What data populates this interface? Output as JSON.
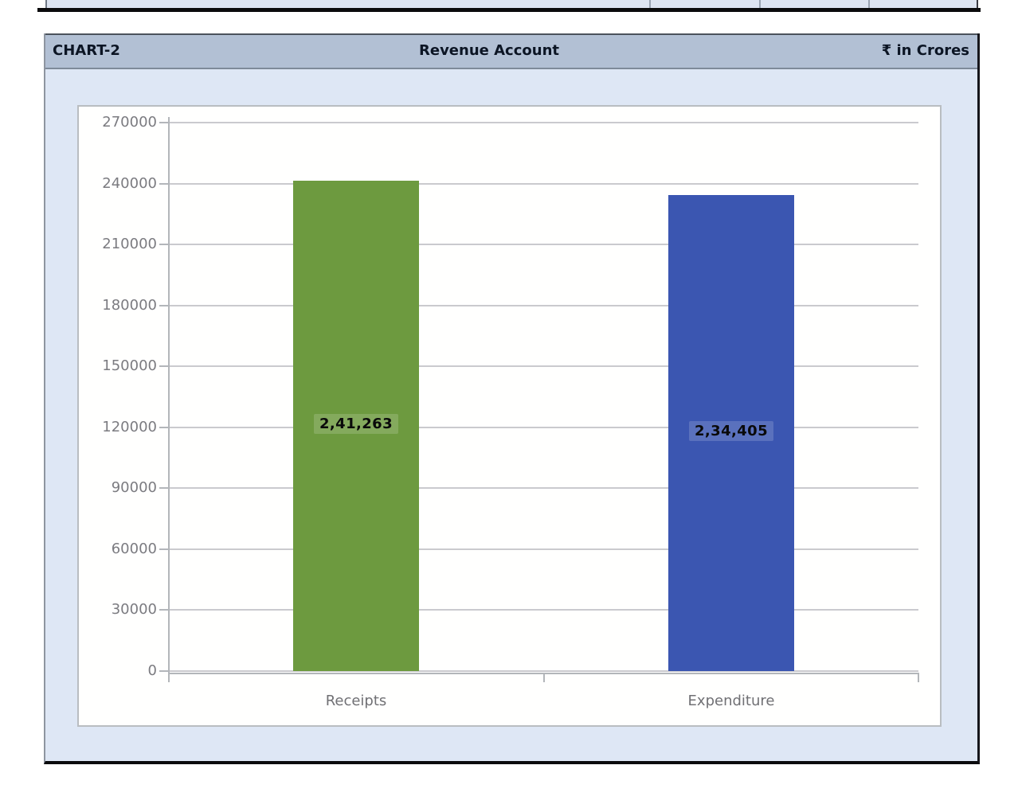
{
  "chart_data": {
    "type": "bar",
    "chart_label": "CHART-2",
    "title": "Revenue Account",
    "unit_label": "₹ in Crores",
    "categories": [
      "Receipts",
      "Expenditure"
    ],
    "values": [
      241263,
      234405
    ],
    "value_labels": [
      "2,41,263",
      "2,34,405"
    ],
    "bar_colors": [
      "#6d9a3f",
      "#3b56b1"
    ],
    "ylim": [
      0,
      270000
    ],
    "yticks": [
      0,
      30000,
      60000,
      90000,
      120000,
      150000,
      180000,
      210000,
      240000,
      270000
    ],
    "ytick_labels": [
      "0",
      "30000",
      "60000",
      "90000",
      "120000",
      "150000",
      "180000",
      "210000",
      "240000",
      "270000"
    ],
    "xlabel": "",
    "ylabel": "",
    "grid": true,
    "legend": false,
    "value_label_position": "center-of-bar"
  }
}
